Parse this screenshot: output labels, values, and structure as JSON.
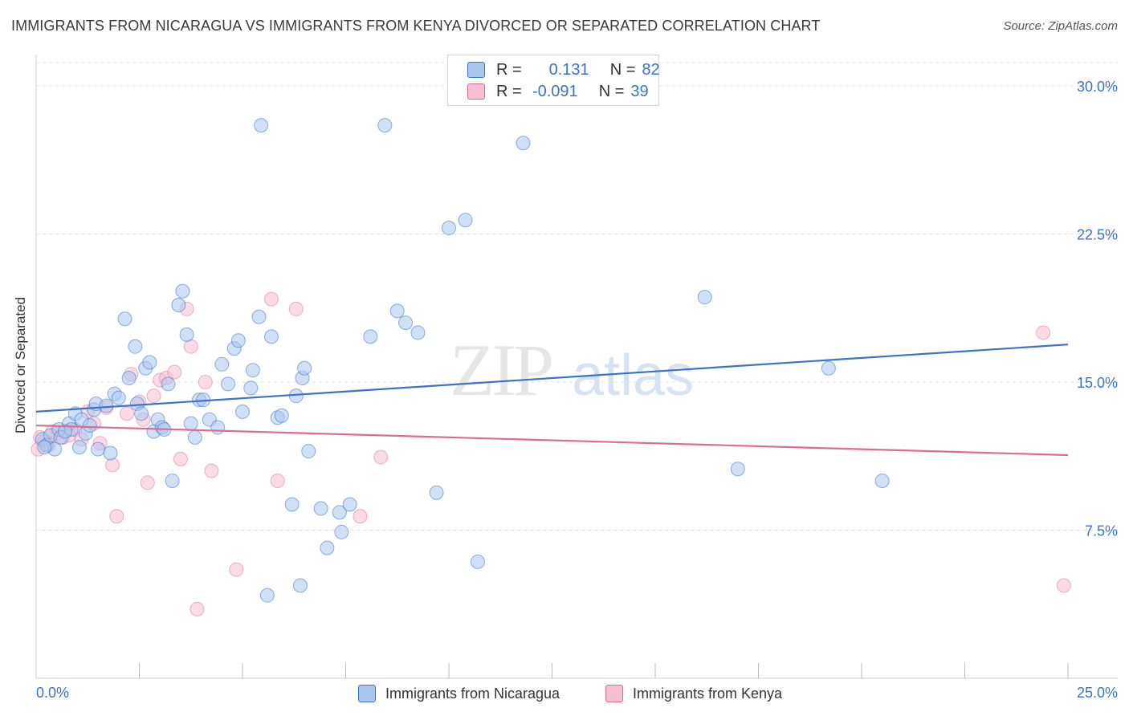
{
  "title": "IMMIGRANTS FROM NICARAGUA VS IMMIGRANTS FROM KENYA DIVORCED OR SEPARATED CORRELATION CHART",
  "source": "Source: ZipAtlas.com",
  "watermark": {
    "zip": "ZIP",
    "atlas": "atlas"
  },
  "legend": {
    "rows": [
      {
        "r_label": "R =",
        "r_value": "0.131",
        "n_label": "N =",
        "n_value": "82"
      },
      {
        "r_label": "R =",
        "r_value": "-0.091",
        "n_label": "N =",
        "n_value": "39"
      }
    ]
  },
  "bottom_legend": {
    "series1": "Immigrants from Nicaragua",
    "series2": "Immigrants from Kenya"
  },
  "chart_data": {
    "type": "scatter",
    "title": "IMMIGRANTS FROM NICARAGUA VS IMMIGRANTS FROM KENYA DIVORCED OR SEPARATED CORRELATION CHART",
    "xlabel": "",
    "ylabel": "Divorced or Separated",
    "xlim": [
      0,
      25
    ],
    "ylim": [
      0,
      31.5
    ],
    "x_tick_labels": [
      "0.0%",
      "25.0%"
    ],
    "y_ticks": [
      7.5,
      15.0,
      22.5,
      30.0
    ],
    "y_tick_labels": [
      "7.5%",
      "15.0%",
      "22.5%",
      "30.0%"
    ],
    "grid": "horizontal dashed",
    "colors": {
      "series1": "#3b73c8",
      "series2": "#e06a96",
      "fill1": "#a9c6ef",
      "fill2": "#f7bfd2"
    },
    "series": [
      {
        "name": "Immigrants from Nicaragua",
        "r": 0.131,
        "n": 82,
        "trend": [
          [
            0,
            13.5
          ],
          [
            25,
            16.9
          ]
        ],
        "points": [
          [
            0.15,
            12.1
          ],
          [
            0.25,
            11.8
          ],
          [
            0.35,
            12.3
          ],
          [
            0.45,
            11.6
          ],
          [
            0.55,
            12.6
          ],
          [
            0.6,
            12.2
          ],
          [
            0.8,
            12.9
          ],
          [
            0.85,
            12.6
          ],
          [
            0.95,
            13.4
          ],
          [
            1.05,
            11.7
          ],
          [
            1.1,
            13.1
          ],
          [
            1.2,
            12.4
          ],
          [
            1.3,
            12.8
          ],
          [
            1.4,
            13.6
          ],
          [
            1.45,
            13.9
          ],
          [
            1.5,
            11.6
          ],
          [
            1.7,
            13.8
          ],
          [
            1.8,
            11.4
          ],
          [
            1.9,
            14.4
          ],
          [
            2.0,
            14.2
          ],
          [
            2.15,
            18.2
          ],
          [
            2.25,
            15.2
          ],
          [
            2.4,
            16.8
          ],
          [
            2.45,
            13.9
          ],
          [
            2.55,
            13.4
          ],
          [
            2.65,
            15.7
          ],
          [
            2.75,
            16.0
          ],
          [
            2.85,
            12.5
          ],
          [
            2.95,
            13.1
          ],
          [
            3.05,
            12.7
          ],
          [
            3.1,
            12.6
          ],
          [
            3.2,
            14.9
          ],
          [
            3.3,
            10.0
          ],
          [
            3.45,
            18.9
          ],
          [
            3.55,
            19.6
          ],
          [
            3.65,
            17.4
          ],
          [
            3.75,
            12.9
          ],
          [
            3.85,
            12.2
          ],
          [
            3.95,
            14.1
          ],
          [
            4.05,
            14.1
          ],
          [
            4.2,
            13.1
          ],
          [
            4.4,
            12.7
          ],
          [
            4.5,
            15.9
          ],
          [
            4.65,
            14.9
          ],
          [
            4.8,
            16.7
          ],
          [
            4.9,
            17.1
          ],
          [
            5.0,
            13.5
          ],
          [
            5.2,
            14.7
          ],
          [
            5.25,
            15.6
          ],
          [
            5.4,
            18.3
          ],
          [
            5.45,
            28.0
          ],
          [
            5.6,
            4.2
          ],
          [
            5.7,
            17.3
          ],
          [
            5.85,
            13.2
          ],
          [
            5.95,
            13.3
          ],
          [
            6.2,
            8.8
          ],
          [
            6.3,
            14.3
          ],
          [
            6.4,
            4.7
          ],
          [
            6.45,
            15.2
          ],
          [
            6.5,
            15.7
          ],
          [
            6.6,
            11.5
          ],
          [
            6.9,
            8.6
          ],
          [
            7.05,
            6.6
          ],
          [
            7.35,
            8.4
          ],
          [
            7.4,
            7.4
          ],
          [
            7.6,
            8.8
          ],
          [
            8.1,
            17.3
          ],
          [
            8.45,
            28.0
          ],
          [
            8.75,
            18.6
          ],
          [
            8.95,
            18.0
          ],
          [
            9.25,
            17.5
          ],
          [
            9.7,
            9.4
          ],
          [
            10.0,
            22.8
          ],
          [
            10.4,
            23.2
          ],
          [
            10.7,
            5.9
          ],
          [
            11.8,
            27.1
          ],
          [
            16.2,
            19.3
          ],
          [
            17.0,
            10.6
          ],
          [
            19.2,
            15.7
          ],
          [
            20.5,
            10.0
          ],
          [
            0.2,
            11.7
          ],
          [
            0.7,
            12.5
          ]
        ]
      },
      {
        "name": "Immigrants from Kenya",
        "r": -0.091,
        "n": 39,
        "trend": [
          [
            0,
            12.8
          ],
          [
            25,
            11.3
          ]
        ],
        "points": [
          [
            0.1,
            12.2
          ],
          [
            0.2,
            12.0
          ],
          [
            0.3,
            11.8
          ],
          [
            0.5,
            12.4
          ],
          [
            0.65,
            12.2
          ],
          [
            0.8,
            12.3
          ],
          [
            0.95,
            12.6
          ],
          [
            1.1,
            12.1
          ],
          [
            1.25,
            13.5
          ],
          [
            1.4,
            12.9
          ],
          [
            1.55,
            11.9
          ],
          [
            1.7,
            13.7
          ],
          [
            1.85,
            10.8
          ],
          [
            1.95,
            8.2
          ],
          [
            2.2,
            13.4
          ],
          [
            2.3,
            15.4
          ],
          [
            2.5,
            14.0
          ],
          [
            2.6,
            13.1
          ],
          [
            2.7,
            9.9
          ],
          [
            2.85,
            14.3
          ],
          [
            3.0,
            15.1
          ],
          [
            3.15,
            15.2
          ],
          [
            3.35,
            15.5
          ],
          [
            3.5,
            11.1
          ],
          [
            3.65,
            18.7
          ],
          [
            3.75,
            16.8
          ],
          [
            3.9,
            3.5
          ],
          [
            4.1,
            15.0
          ],
          [
            4.25,
            10.5
          ],
          [
            4.85,
            5.5
          ],
          [
            5.7,
            19.2
          ],
          [
            5.85,
            10.0
          ],
          [
            6.3,
            18.7
          ],
          [
            7.85,
            8.2
          ],
          [
            8.35,
            11.2
          ],
          [
            24.4,
            17.5
          ],
          [
            24.9,
            4.7
          ],
          [
            0.05,
            11.6
          ],
          [
            0.4,
            12.5
          ]
        ]
      }
    ]
  }
}
